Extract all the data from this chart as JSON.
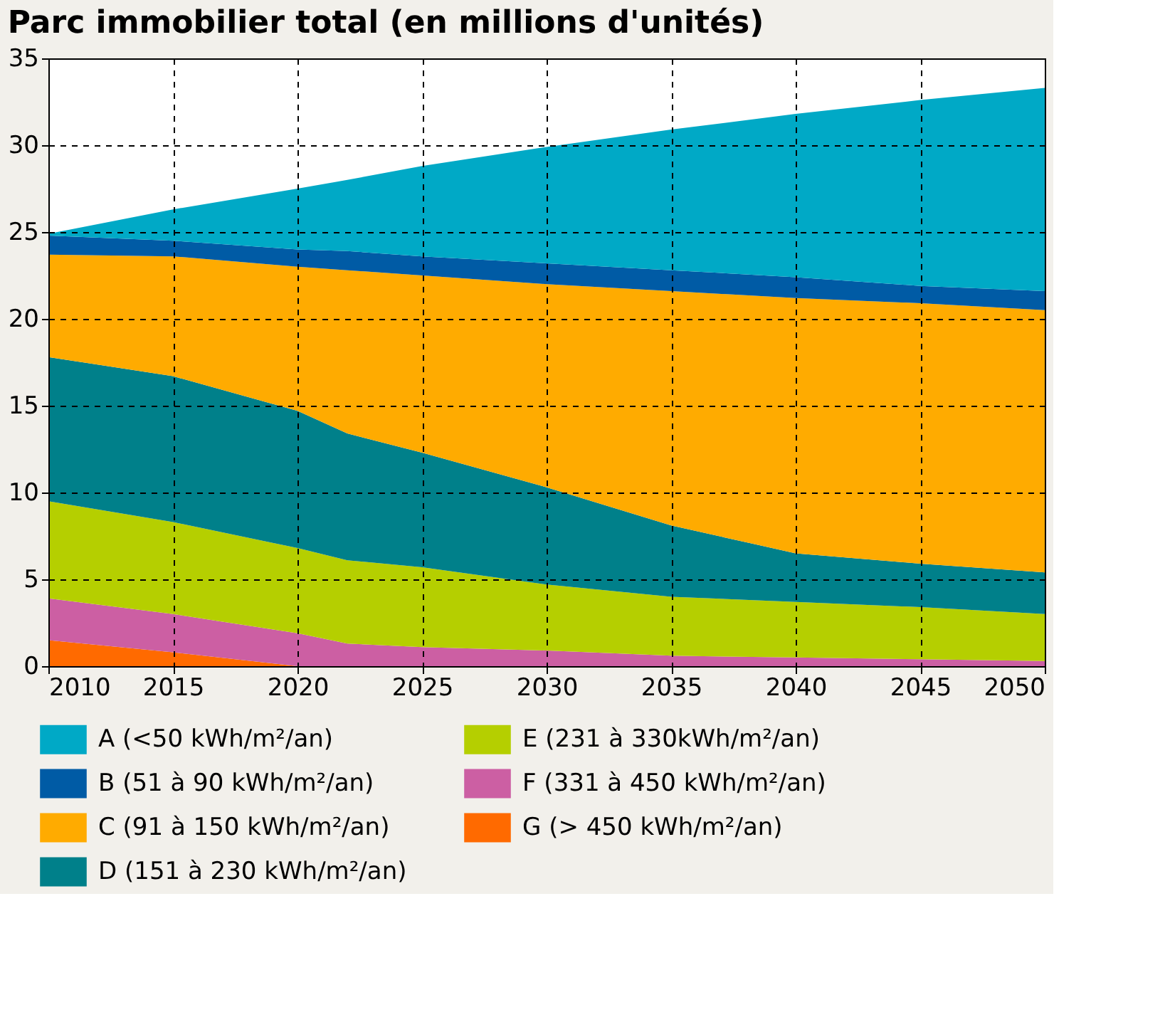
{
  "chart_data": {
    "type": "area",
    "title": "Parc immobilier total (en millions d'unités)",
    "stacked": true,
    "x": [
      2010,
      2015,
      2020,
      2022,
      2025,
      2030,
      2035,
      2040,
      2045,
      2050
    ],
    "series": [
      {
        "name": "G (> 450 kWh/m²/an)",
        "color": "#ff6a00",
        "values": [
          1.5,
          0.8,
          0,
          0,
          0,
          0,
          0,
          0,
          0,
          0
        ]
      },
      {
        "name": "F (331 à 450 kWh/m²/an)",
        "color": "#cc5fa3",
        "values": [
          2.4,
          2.2,
          1.9,
          1.3,
          1.1,
          0.9,
          0.6,
          0.5,
          0.4,
          0.3
        ]
      },
      {
        "name": "E (231 à 330kWh/m²/an)",
        "color": "#b5cf00",
        "values": [
          5.6,
          5.3,
          4.9,
          4.8,
          4.6,
          3.8,
          3.4,
          3.2,
          3.0,
          2.7
        ]
      },
      {
        "name": "D (151 à 230 kWh/m²/an)",
        "color": "#00808a",
        "values": [
          8.3,
          8.4,
          7.9,
          7.3,
          6.6,
          5.6,
          4.1,
          2.8,
          2.5,
          2.4
        ]
      },
      {
        "name": "C (91 à 150 kWh/m²/an)",
        "color": "#ffab00",
        "values": [
          5.9,
          6.9,
          8.3,
          9.4,
          10.2,
          11.7,
          13.5,
          14.7,
          15.0,
          15.1
        ]
      },
      {
        "name": "B (51 à 90 kWh/m²/an)",
        "color": "#005ba5",
        "values": [
          1.1,
          0.9,
          1.0,
          1.1,
          1.1,
          1.2,
          1.2,
          1.2,
          1.0,
          1.1
        ]
      },
      {
        "name": "A (<50 kWh/m²/an)",
        "color": "#00a9c6",
        "values": [
          0.1,
          1.8,
          3.5,
          4.1,
          5.2,
          6.7,
          8.1,
          9.4,
          10.7,
          11.7
        ]
      }
    ],
    "xlim": [
      2010,
      2050
    ],
    "xticks": [
      2010,
      2015,
      2020,
      2025,
      2030,
      2035,
      2040,
      2045,
      2050
    ],
    "ylim": [
      0,
      35
    ],
    "yticks": [
      0,
      5,
      10,
      15,
      20,
      25,
      30,
      35
    ],
    "grid": true,
    "legend": "bottom"
  }
}
